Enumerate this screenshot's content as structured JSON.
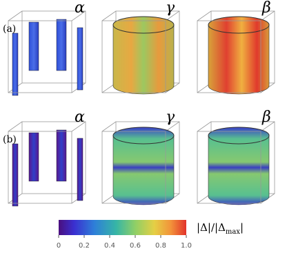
{
  "panels": [
    {
      "label": "(a)",
      "titles": [
        "α",
        "γ",
        "β"
      ]
    },
    {
      "label": "(b)",
      "titles": [
        "α",
        "γ",
        "β"
      ]
    }
  ],
  "colorbar": {
    "label_main": "|Δ|/|Δ",
    "label_sub": "max",
    "label_end": "|",
    "lim": [
      0,
      1
    ],
    "ticks": [
      0,
      0.2,
      0.4,
      0.6,
      0.8,
      {
        "value": 1,
        "label": "1.0"
      }
    ]
  }
}
